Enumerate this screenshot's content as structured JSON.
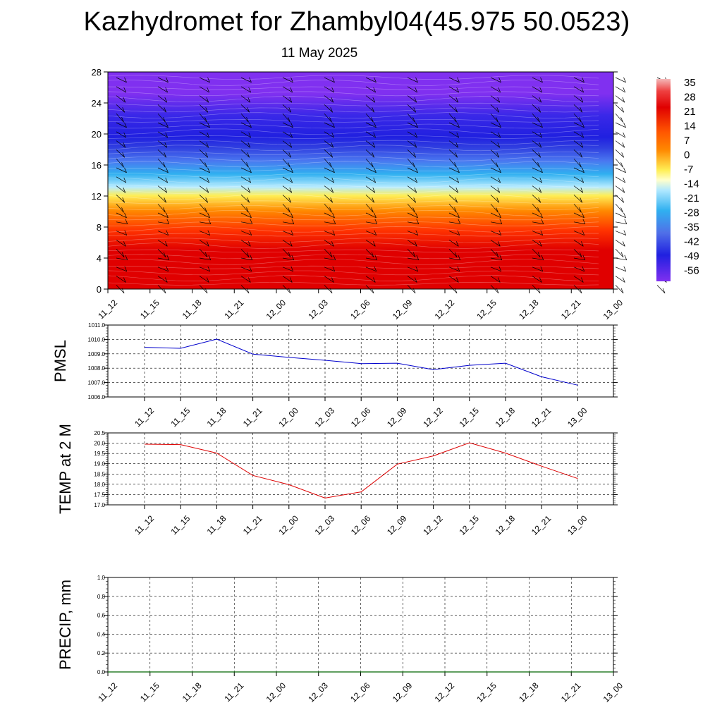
{
  "title": "Kazhydromet for Zhambyl04(45.975 50.0523)",
  "subtitle": "11 May 2025",
  "chart_data": [
    {
      "type": "heatmap",
      "name": "temperature-cross-section",
      "x_tick_labels": [
        "11_12",
        "11_15",
        "11_18",
        "11_21",
        "12_00",
        "12_03",
        "12_06",
        "12_09",
        "12_12",
        "12_15",
        "12_18",
        "12_21",
        "13_00"
      ],
      "yticks": [
        0,
        4,
        8,
        12,
        16,
        20,
        24,
        28
      ],
      "ylim": [
        0,
        28
      ],
      "colorbar_labels": [
        "35",
        "28",
        "21",
        "14",
        "7",
        "0",
        "-7",
        "-14",
        "-21",
        "-28",
        "-35",
        "-42",
        "-49",
        "-56"
      ],
      "colors": {
        "hot": "#e00000",
        "warm": "#ff8800",
        "zero": "#ffee55",
        "cool": "#30b0f0",
        "cold": "#2020e0",
        "coldest": "#8030f0",
        "top": "#f4b8b8"
      },
      "wind_barbs": true
    },
    {
      "type": "line",
      "ylabel": "PMSL",
      "x": [
        "11_12",
        "11_15",
        "11_18",
        "11_21",
        "12_00",
        "12_03",
        "12_06",
        "12_09",
        "12_12",
        "12_15",
        "12_18",
        "12_21",
        "13_00"
      ],
      "series": [
        {
          "values": [
            1009.45,
            1009.38,
            1010.02,
            1008.98,
            1008.75,
            1008.55,
            1008.32,
            1008.35,
            1007.9,
            1008.2,
            1008.35,
            1007.4,
            1006.82
          ],
          "color": "#0000cc"
        }
      ],
      "ylim": [
        1006.0,
        1011.0
      ],
      "ytick_labels": [
        "1006.0",
        "1007.0",
        "1008.0",
        "1009.0",
        "1010.0",
        "1011.0"
      ],
      "grid": true
    },
    {
      "type": "line",
      "ylabel": "TEMP at 2 M",
      "x": [
        "11_12",
        "11_15",
        "11_18",
        "11_21",
        "12_00",
        "12_03",
        "12_06",
        "12_09",
        "12_12",
        "12_15",
        "12_18",
        "12_21",
        "13_00"
      ],
      "series": [
        {
          "values": [
            19.95,
            19.93,
            19.52,
            18.43,
            17.98,
            17.33,
            17.63,
            18.98,
            19.38,
            20.02,
            19.52,
            18.88,
            18.28
          ],
          "color": "#dd0000"
        }
      ],
      "ylim": [
        17.0,
        20.5
      ],
      "ytick_labels": [
        "17.0",
        "17.5",
        "18.0",
        "18.5",
        "19.0",
        "19.5",
        "20.0",
        "20.5"
      ],
      "grid": true
    },
    {
      "type": "line",
      "ylabel": "PRECIP, mm",
      "x_tick_labels": [
        "11_12",
        "11_15",
        "11_18",
        "11_21",
        "12_00",
        "12_03",
        "12_06",
        "12_09",
        "12_12",
        "12_15",
        "12_18",
        "12_21",
        "13_00"
      ],
      "series": [
        {
          "values": [
            0,
            0,
            0,
            0,
            0,
            0,
            0,
            0,
            0,
            0,
            0,
            0,
            0
          ],
          "color": "#006600"
        }
      ],
      "ylim": [
        0.0,
        1.0
      ],
      "ytick_labels": [
        "0.0",
        "0.2",
        "0.4",
        "0.6",
        "0.8",
        "1.0"
      ],
      "grid": true
    }
  ]
}
